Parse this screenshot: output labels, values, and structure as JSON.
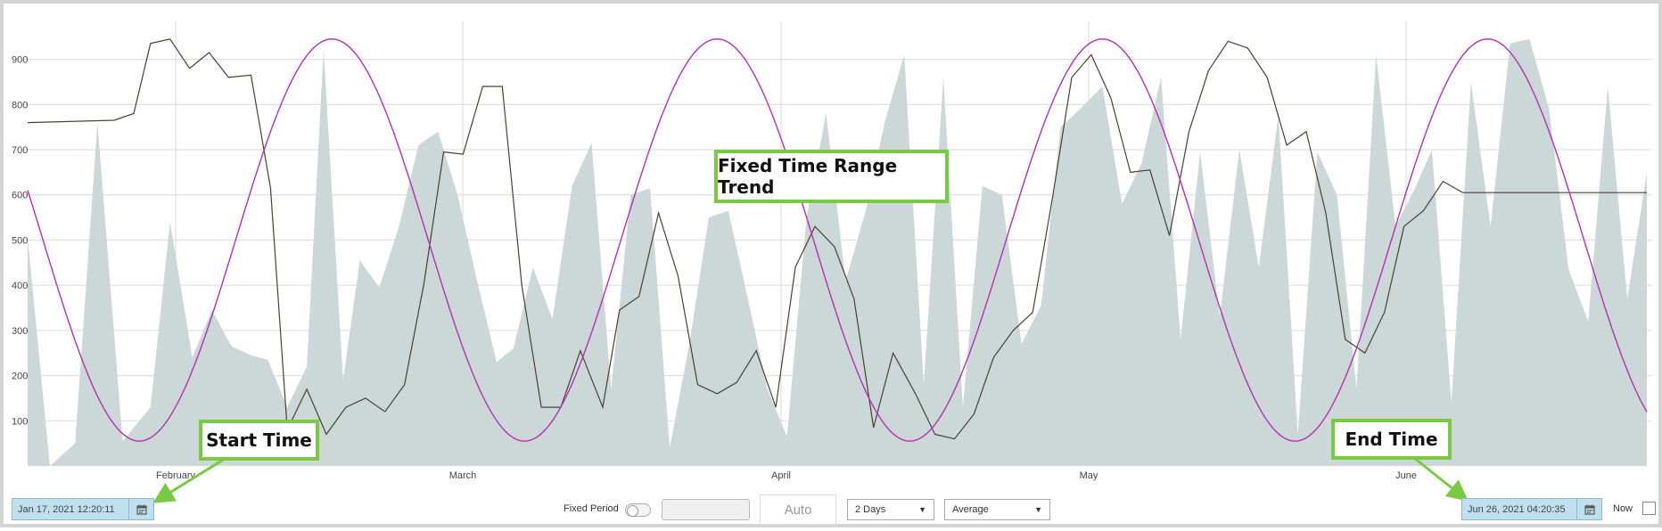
{
  "chart_data": {
    "type": "line",
    "title": "",
    "x_ticks": [
      "February",
      "March",
      "April",
      "May",
      "June"
    ],
    "y_ticks": [
      100,
      200,
      300,
      400,
      500,
      600,
      700,
      800,
      900
    ],
    "ylim": [
      0,
      980
    ],
    "grid": true,
    "series": [
      {
        "style": "area",
        "color": "#ccd7d8",
        "points": [
          [
            0,
            505
          ],
          [
            8,
            0
          ],
          [
            17,
            50
          ],
          [
            25,
            760
          ],
          [
            34,
            55
          ],
          [
            44,
            130
          ],
          [
            51,
            540
          ],
          [
            59,
            240
          ],
          [
            66,
            345
          ],
          [
            73,
            265
          ],
          [
            80,
            245
          ],
          [
            86,
            235
          ],
          [
            93,
            130
          ],
          [
            100,
            220
          ],
          [
            106,
            922
          ],
          [
            113,
            190
          ],
          [
            119,
            455
          ],
          [
            126,
            395
          ],
          [
            133,
            530
          ],
          [
            140,
            710
          ],
          [
            147,
            740
          ],
          [
            154,
            600
          ],
          [
            161,
            410
          ],
          [
            168,
            230
          ],
          [
            174,
            260
          ],
          [
            181,
            440
          ],
          [
            188,
            325
          ],
          [
            195,
            620
          ],
          [
            202,
            715
          ],
          [
            209,
            170
          ],
          [
            216,
            600
          ],
          [
            223,
            615
          ],
          [
            230,
            40
          ],
          [
            237,
            270
          ],
          [
            244,
            550
          ],
          [
            251,
            565
          ],
          [
            258,
            370
          ],
          [
            265,
            170
          ],
          [
            272,
            65
          ],
          [
            279,
            550
          ],
          [
            286,
            780
          ],
          [
            293,
            410
          ],
          [
            300,
            560
          ],
          [
            307,
            760
          ],
          [
            314,
            910
          ],
          [
            321,
            180
          ],
          [
            328,
            860
          ],
          [
            335,
            130
          ],
          [
            342,
            620
          ],
          [
            349,
            600
          ],
          [
            356,
            270
          ],
          [
            363,
            355
          ],
          [
            370,
            750
          ],
          [
            377,
            790
          ],
          [
            385,
            840
          ],
          [
            392,
            580
          ],
          [
            399,
            670
          ],
          [
            406,
            860
          ],
          [
            413,
            280
          ],
          [
            420,
            695
          ],
          [
            427,
            330
          ],
          [
            434,
            700
          ],
          [
            441,
            440
          ],
          [
            448,
            775
          ],
          [
            455,
            70
          ],
          [
            462,
            695
          ],
          [
            469,
            600
          ],
          [
            476,
            170
          ],
          [
            483,
            910
          ],
          [
            490,
            530
          ],
          [
            497,
            615
          ],
          [
            503,
            700
          ],
          [
            510,
            140
          ],
          [
            517,
            850
          ],
          [
            524,
            530
          ],
          [
            531,
            935
          ],
          [
            538,
            945
          ],
          [
            545,
            790
          ],
          [
            552,
            435
          ],
          [
            559,
            320
          ],
          [
            566,
            840
          ],
          [
            573,
            370
          ],
          [
            580,
            650
          ]
        ]
      },
      {
        "style": "line",
        "color": "#4a4030",
        "points": [
          [
            0,
            760
          ],
          [
            31,
            765
          ],
          [
            38,
            780
          ],
          [
            44,
            935
          ],
          [
            51,
            945
          ],
          [
            58,
            880
          ],
          [
            65,
            915
          ],
          [
            72,
            860
          ],
          [
            80,
            865
          ],
          [
            87,
            615
          ],
          [
            93,
            80
          ],
          [
            100,
            170
          ],
          [
            107,
            70
          ],
          [
            114,
            130
          ],
          [
            121,
            150
          ],
          [
            128,
            120
          ],
          [
            135,
            180
          ],
          [
            142,
            405
          ],
          [
            149,
            695
          ],
          [
            156,
            690
          ],
          [
            163,
            840
          ],
          [
            170,
            840
          ],
          [
            177,
            400
          ],
          [
            184,
            130
          ],
          [
            191,
            130
          ],
          [
            198,
            255
          ],
          [
            206,
            130
          ],
          [
            212,
            345
          ],
          [
            219,
            375
          ],
          [
            226,
            560
          ],
          [
            233,
            420
          ],
          [
            240,
            180
          ],
          [
            247,
            160
          ],
          [
            254,
            185
          ],
          [
            261,
            255
          ],
          [
            268,
            130
          ],
          [
            275,
            440
          ],
          [
            282,
            530
          ],
          [
            289,
            485
          ],
          [
            296,
            370
          ],
          [
            303,
            85
          ],
          [
            310,
            250
          ],
          [
            318,
            160
          ],
          [
            325,
            70
          ],
          [
            332,
            60
          ],
          [
            339,
            115
          ],
          [
            346,
            240
          ],
          [
            353,
            300
          ],
          [
            360,
            340
          ],
          [
            367,
            590
          ],
          [
            374,
            860
          ],
          [
            381,
            910
          ],
          [
            388,
            815
          ],
          [
            395,
            650
          ],
          [
            402,
            655
          ],
          [
            409,
            510
          ],
          [
            416,
            740
          ],
          [
            423,
            875
          ],
          [
            430,
            940
          ],
          [
            437,
            925
          ],
          [
            444,
            860
          ],
          [
            451,
            710
          ],
          [
            458,
            740
          ],
          [
            465,
            560
          ],
          [
            472,
            280
          ],
          [
            479,
            250
          ],
          [
            486,
            340
          ],
          [
            493,
            530
          ],
          [
            500,
            565
          ],
          [
            507,
            630
          ],
          [
            514,
            605
          ],
          [
            580,
            605
          ]
        ]
      },
      {
        "style": "line",
        "color": "#b430b4",
        "function": "sine",
        "min": 55,
        "max": 945,
        "period_days": 138,
        "x_range": [
          0,
          580
        ]
      }
    ],
    "x_axis": {
      "start": "Jan 17, 2021 12:20:11",
      "end": "Jun 26, 2021 04:20:35"
    }
  },
  "annotations": {
    "center": "Fixed Time Range Trend",
    "start": "Start Time",
    "end": "End Time"
  },
  "controls": {
    "start_time": "Jan 17, 2021 12:20:11",
    "end_time": "Jun 26, 2021 04:20:35",
    "fixed_period_label": "Fixed Period",
    "auto_label": "Auto",
    "duration": "2 Days",
    "aggregate": "Average",
    "now_label": "Now"
  }
}
